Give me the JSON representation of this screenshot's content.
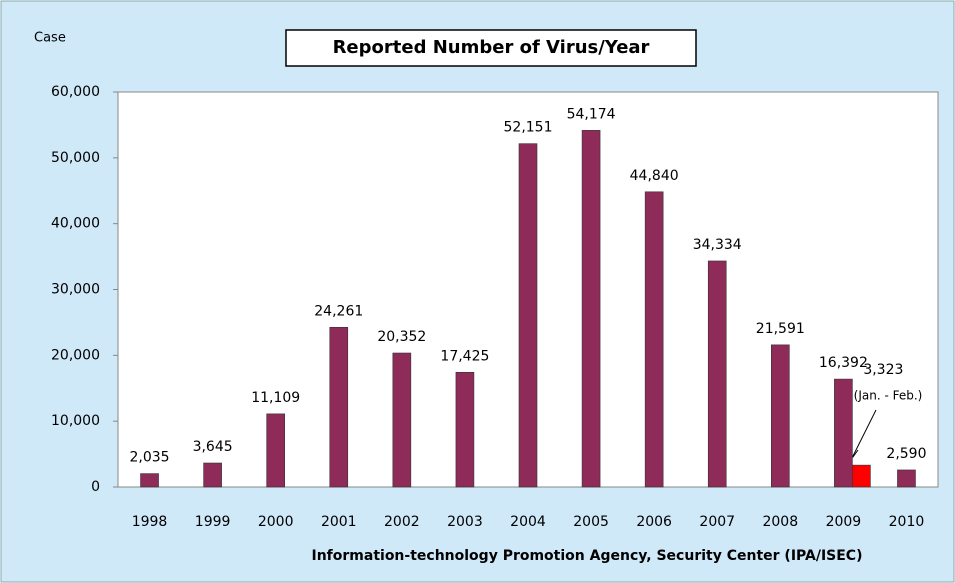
{
  "chart_data": {
    "type": "bar",
    "title": "Reported Number of Virus/Year",
    "y_label": "Case",
    "source": "Information-technology  Promotion  Agency, Security Center  (IPA/ISEC)",
    "annotation": "(Jan. - Feb.)",
    "categories": [
      "1998",
      "1999",
      "2000",
      "2001",
      "2002",
      "2003",
      "2004",
      "2005",
      "2006",
      "2007",
      "2008",
      "2009",
      "2010"
    ],
    "series": [
      {
        "color": "#8e2b59",
        "values": [
          2035,
          3645,
          11109,
          24261,
          20352,
          17425,
          52151,
          54174,
          44840,
          34334,
          21591,
          16392,
          2590
        ],
        "value_labels": [
          "2,035",
          "3,645",
          "11,109",
          "24,261",
          "20,352",
          "17,425",
          "52,151",
          "54,174",
          "44,840",
          "34,334",
          "21,591",
          "16,392",
          "2,590"
        ]
      },
      {
        "color": "#ff0000",
        "values": [
          null,
          null,
          null,
          null,
          null,
          null,
          null,
          null,
          null,
          null,
          null,
          3323,
          null
        ],
        "value_labels": [
          null,
          null,
          null,
          null,
          null,
          null,
          null,
          null,
          null,
          null,
          null,
          "3,323",
          null
        ]
      }
    ],
    "ylim": [
      0,
      60000
    ],
    "yticks": [
      0,
      {
        "value": 10000,
        "label": "10,000"
      },
      {
        "value": 20000,
        "label": "20,000"
      },
      {
        "value": 30000,
        "label": "30,000"
      },
      {
        "value": 40000,
        "label": "40,000"
      },
      {
        "value": 50000,
        "label": "50,000"
      },
      {
        "value": 60000,
        "label": "60,000"
      }
    ],
    "grid": false
  }
}
